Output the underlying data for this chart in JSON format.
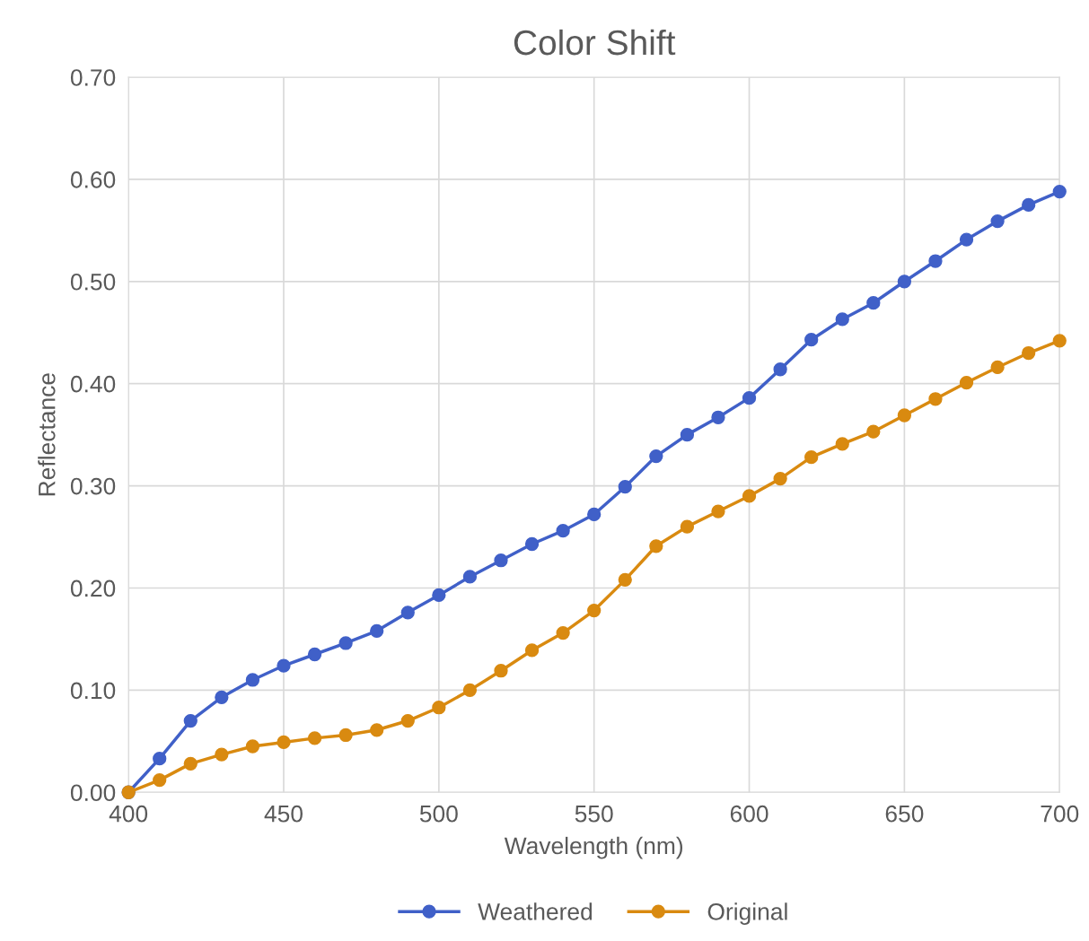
{
  "chart_data": {
    "type": "line",
    "title": "Color Shift",
    "xlabel": "Wavelength (nm)",
    "ylabel": "Reflectance",
    "x": [
      400,
      410,
      420,
      430,
      440,
      450,
      460,
      470,
      480,
      490,
      500,
      510,
      520,
      530,
      540,
      550,
      560,
      570,
      580,
      590,
      600,
      610,
      620,
      630,
      640,
      650,
      660,
      670,
      680,
      690,
      700
    ],
    "series": [
      {
        "name": "Weathered",
        "color": "#4060c8",
        "values": [
          0.0,
          0.033,
          0.07,
          0.093,
          0.11,
          0.124,
          0.135,
          0.146,
          0.158,
          0.176,
          0.193,
          0.211,
          0.227,
          0.243,
          0.256,
          0.272,
          0.299,
          0.329,
          0.35,
          0.367,
          0.386,
          0.414,
          0.443,
          0.463,
          0.479,
          0.5,
          0.52,
          0.541,
          0.559,
          0.575,
          0.588
        ]
      },
      {
        "name": "Original",
        "color": "#d98a10",
        "values": [
          0.0,
          0.012,
          0.028,
          0.037,
          0.045,
          0.049,
          0.053,
          0.056,
          0.061,
          0.07,
          0.083,
          0.1,
          0.119,
          0.139,
          0.156,
          0.178,
          0.208,
          0.241,
          0.26,
          0.275,
          0.29,
          0.307,
          0.328,
          0.341,
          0.353,
          0.369,
          0.385,
          0.401,
          0.416,
          0.43,
          0.442
        ]
      }
    ],
    "xlim": [
      400,
      700
    ],
    "xticks": [
      400,
      450,
      500,
      550,
      600,
      650,
      700
    ],
    "ylim": [
      0,
      0.7
    ],
    "yticks": [
      {
        "value": 0,
        "label": "0.00"
      },
      {
        "value": 0.1,
        "label": "0.10"
      },
      {
        "value": 0.2,
        "label": "0.20"
      },
      {
        "value": 0.3,
        "label": "0.30"
      },
      {
        "value": 0.4,
        "label": "0.40"
      },
      {
        "value": 0.5,
        "label": "0.50"
      },
      {
        "value": 0.6,
        "label": "0.60"
      },
      {
        "value": 0.7,
        "label": "0.70"
      }
    ],
    "grid": true,
    "legend": "bottom",
    "marker": "circle",
    "line_style": "solid"
  }
}
